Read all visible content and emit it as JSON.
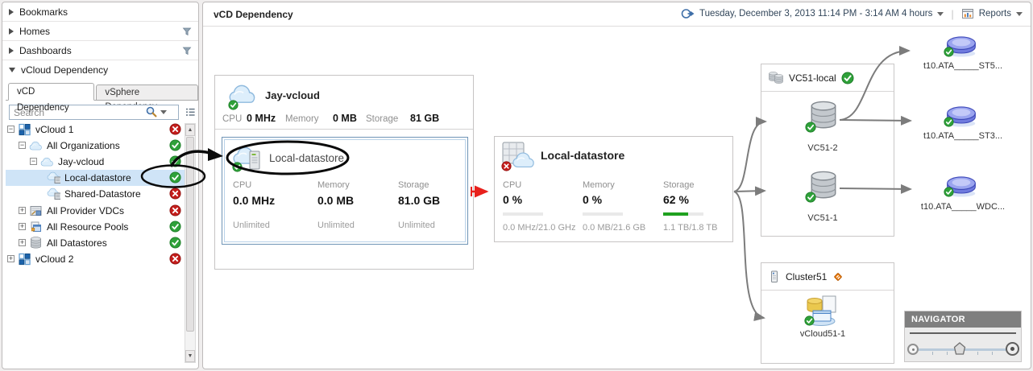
{
  "sidebar": {
    "sections": [
      {
        "label": "Bookmarks"
      },
      {
        "label": "Homes"
      },
      {
        "label": "Dashboards"
      },
      {
        "label": "vCloud Dependency"
      }
    ],
    "tabs": [
      {
        "label": "vCD Dependency"
      },
      {
        "label": "vSphere Dependency"
      }
    ],
    "search": {
      "placeholder": "Search"
    },
    "tree": [
      {
        "label": "vCloud 1",
        "status": "error"
      },
      {
        "label": "All Organizations",
        "status": "ok"
      },
      {
        "label": "Jay-vcloud",
        "status": "ok"
      },
      {
        "label": "Local-datastore",
        "status": "ok",
        "selected": true
      },
      {
        "label": "Shared-Datastore",
        "status": "error"
      },
      {
        "label": "All Provider VDCs",
        "status": "error"
      },
      {
        "label": "All Resource Pools",
        "status": "ok"
      },
      {
        "label": "All Datastores",
        "status": "ok"
      },
      {
        "label": "vCloud 2",
        "status": "error"
      }
    ]
  },
  "header": {
    "title": "vCD Dependency",
    "time_range": "Tuesday, December 3, 2013 11:14 PM - 3:14 AM 4 hours",
    "reports_label": "Reports"
  },
  "canvas": {
    "vcloud_card": {
      "title": "Jay-vcloud",
      "stats": [
        {
          "label": "CPU",
          "value": "0 MHz"
        },
        {
          "label": "Memory",
          "value": "0 MB"
        },
        {
          "label": "Storage",
          "value": "81 GB"
        }
      ]
    },
    "selected_card": {
      "title": "Local-datastore",
      "metrics": [
        {
          "label": "CPU",
          "value": "0.0 MHz",
          "limit": "Unlimited"
        },
        {
          "label": "Memory",
          "value": "0.0 MB",
          "limit": "Unlimited"
        },
        {
          "label": "Storage",
          "value": "81.0 GB",
          "limit": "Unlimited"
        }
      ]
    },
    "detail_card": {
      "title": "Local-datastore",
      "metrics": [
        {
          "label": "CPU",
          "percent": "0 %",
          "bar": 0,
          "usage": "0.0 MHz/21.0 GHz"
        },
        {
          "label": "Memory",
          "percent": "0 %",
          "bar": 0,
          "usage": "0.0 MB/21.6 GB"
        },
        {
          "label": "Storage",
          "percent": "62 %",
          "bar": 62,
          "usage": "1.1 TB/1.8 TB"
        }
      ]
    },
    "vc_group": {
      "title": "VC51-local",
      "status": "ok",
      "nodes": [
        {
          "label": "VC51-2"
        },
        {
          "label": "VC51-1"
        }
      ]
    },
    "cluster_group": {
      "title": "Cluster51",
      "status": "warning",
      "node": {
        "label": "vCloud51-1"
      }
    },
    "disks": [
      {
        "label": "t10.ATA_____ST5..."
      },
      {
        "label": "t10.ATA_____ST3..."
      },
      {
        "label": "t10.ATA_____WDC..."
      }
    ],
    "navigator": {
      "title": "NAVIGATOR"
    }
  },
  "colors": {
    "status_ok": "#2fa13a",
    "status_error": "#c41e1c",
    "warning": "#ed7d10",
    "selection_bg": "#cfe4f7",
    "storage_bar_green": "#1fa11f",
    "arrow_red": "#e8211c",
    "arrow_gray": "#7c7c7c",
    "annotation_black": "#0a0a0a",
    "accent_blue": "#1c63ac"
  }
}
